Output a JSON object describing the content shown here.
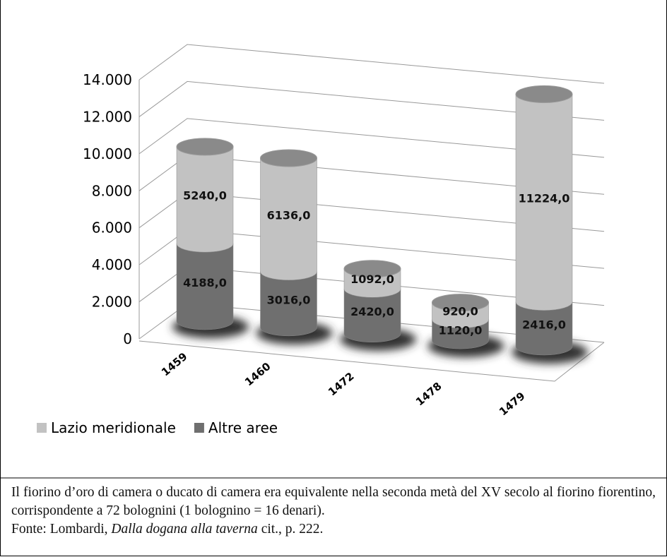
{
  "chart_data": {
    "type": "bar3d-stacked",
    "categories": [
      "1459",
      "1460",
      "1472",
      "1478",
      "1479"
    ],
    "series": [
      {
        "name": "Lazio meridionale",
        "color": "#c2c2c2",
        "values": [
          5240,
          6136,
          1092,
          920,
          11224
        ],
        "value_labels": [
          "5240,0",
          "6136,0",
          "1092,0",
          "920,0",
          "11224,0"
        ]
      },
      {
        "name": "Altre aree",
        "color": "#6f6f6f",
        "values": [
          4188,
          3016,
          2420,
          1120,
          2416
        ],
        "value_labels": [
          "4188,0",
          "3016,0",
          "2420,0",
          "1120,0",
          "2416,0"
        ]
      }
    ],
    "ylim": [
      0,
      14000
    ],
    "yticks": [
      0,
      {
        "value": 2000,
        "label": "2.000"
      },
      {
        "value": 4000,
        "label": "4.000"
      },
      {
        "value": 6000,
        "label": "6.000"
      },
      {
        "value": 8000,
        "label": "8.000"
      },
      {
        "value": 10000,
        "label": "10.000"
      },
      {
        "value": 12000,
        "label": "12.000"
      },
      {
        "value": 14000,
        "label": "14.000"
      }
    ],
    "grid": true,
    "legend": "bottom-left"
  },
  "note": {
    "text": "Il fiorino d’oro di camera o ducato di camera era equivalente nella seconda metà del XV secolo al fiorino fiorentino, corrispondente a 72 bolognini (1 bolognino = 16 denari).",
    "source_prefix": "Fonte: Lombardi, ",
    "source_title": "Dalla dogana alla taverna",
    "source_suffix": " cit., p. 222."
  }
}
